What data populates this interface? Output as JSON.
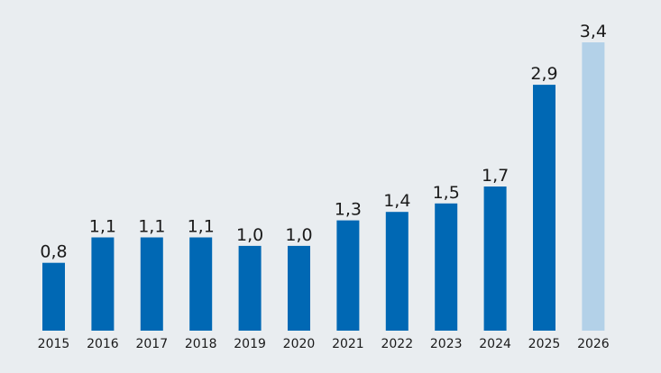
{
  "chart_data": {
    "type": "bar",
    "categories": [
      "2015",
      "2016",
      "2017",
      "2018",
      "2019",
      "2020",
      "2021",
      "2022",
      "2023",
      "2024",
      "2025",
      "2026"
    ],
    "values": [
      0.8,
      1.1,
      1.1,
      1.1,
      1.0,
      1.0,
      1.3,
      1.4,
      1.5,
      1.7,
      2.9,
      3.4
    ],
    "value_labels": [
      "0,8",
      "1,1",
      "1,1",
      "1,1",
      "1,0",
      "1,0",
      "1,3",
      "1,4",
      "1,5",
      "1,7",
      "2,9",
      "3,4"
    ],
    "title": "",
    "xlabel": "",
    "ylabel": "",
    "ylim": [
      0,
      3.4
    ],
    "grid": false,
    "legend": "none",
    "colors": {
      "actual": "#0068b4",
      "forecast": "#b3d1e8",
      "background": "#e9edf0"
    },
    "forecast_categories": [
      "2026"
    ]
  }
}
